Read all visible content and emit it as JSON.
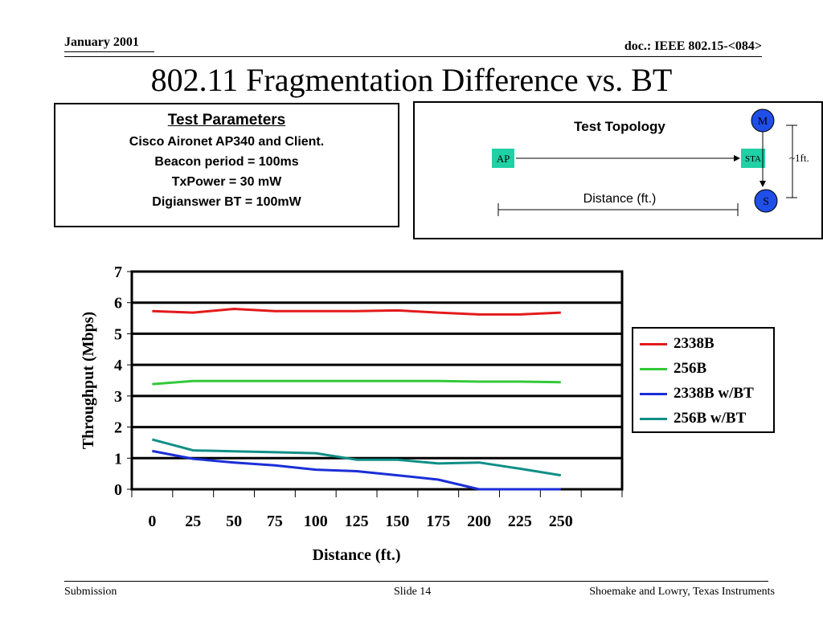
{
  "header": {
    "date": "January 2001",
    "doc": "doc.: IEEE 802.15-<084>"
  },
  "title": "802.11 Fragmentation Difference vs. BT",
  "params": {
    "title": "Test Parameters",
    "lines": [
      "Cisco Aironet AP340 and Client.",
      "Beacon period = 100ms",
      "TxPower = 30 mW",
      "Digianswer BT = 100mW"
    ]
  },
  "topology": {
    "title": "Test Topology",
    "ap_label": "AP",
    "sta_label": "STA",
    "m_label": "M",
    "s_label": "S",
    "distance_label": "Distance (ft.)",
    "spacing_label": "~1ft.",
    "colors": {
      "node": "#1fd1a5",
      "circle": "#1f4fe6"
    }
  },
  "chart_data": {
    "type": "line",
    "xlabel": "Distance (ft.)",
    "ylabel": "Throughput (Mbps)",
    "x": [
      0,
      25,
      50,
      75,
      100,
      125,
      150,
      175,
      200,
      225,
      250
    ],
    "ylim": [
      0,
      7
    ],
    "yticks": [
      0,
      1,
      2,
      3,
      4,
      5,
      6,
      7
    ],
    "grid": "horizontal",
    "legend_position": "right",
    "series": [
      {
        "name": "2338B",
        "color": "#e31a1c",
        "values": [
          5.73,
          5.68,
          5.8,
          5.73,
          5.73,
          5.73,
          5.75,
          5.68,
          5.62,
          5.62,
          5.68
        ]
      },
      {
        "name": "256B",
        "color": "#33c93a",
        "values": [
          3.38,
          3.48,
          3.48,
          3.48,
          3.48,
          3.48,
          3.48,
          3.48,
          3.46,
          3.46,
          3.44
        ]
      },
      {
        "name": "2338B w/BT",
        "color": "#1a2ed6",
        "values": [
          1.23,
          0.98,
          0.86,
          0.77,
          0.63,
          0.58,
          0.45,
          0.31,
          0.0,
          0.0,
          0.0
        ]
      },
      {
        "name": "256B w/BT",
        "color": "#0f8f86",
        "values": [
          1.6,
          1.25,
          1.22,
          1.19,
          1.16,
          0.95,
          0.95,
          0.83,
          0.86,
          0.66,
          0.45
        ]
      }
    ]
  },
  "footer": {
    "left": "Submission",
    "center": "Slide 14",
    "right": "Shoemake and Lowry, Texas Instruments"
  }
}
